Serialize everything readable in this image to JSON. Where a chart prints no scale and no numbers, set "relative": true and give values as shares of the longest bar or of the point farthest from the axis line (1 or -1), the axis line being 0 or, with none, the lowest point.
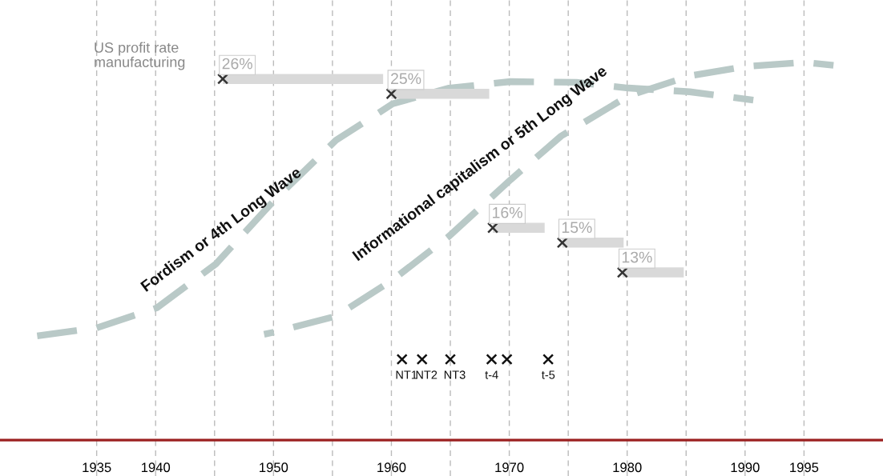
{
  "chart_data": [
    {
      "type": "line",
      "relative": true,
      "grid": "x",
      "tick_labels": "x",
      "line_style": "dashed",
      "xlim": [
        1926.8,
        2001.7
      ],
      "xticks": [
        1935,
        1940,
        {
          "value": 1945,
          "label": null
        },
        1950,
        {
          "value": 1955,
          "label": null
        },
        1960,
        {
          "value": 1965,
          "label": null
        },
        1970,
        {
          "value": 1975,
          "label": null
        },
        1980,
        {
          "value": 1985,
          "label": null
        },
        1990,
        1995
      ],
      "series": [
        {
          "color": "#b9c9c7",
          "x": [
            1929.8,
            1935,
            1940.1,
            1945.1,
            1950.1,
            1955.3,
            1960.1,
            1964.9,
            1970.1,
            1975.7,
            1980.1,
            1985.3,
            1990.7
          ],
          "values": [
            0.275,
            0.297,
            0.35,
            0.466,
            0.636,
            0.794,
            0.89,
            0.932,
            0.949,
            0.947,
            0.932,
            0.922,
            0.9
          ]
        },
        {
          "color": "#b9c9c7",
          "x": [
            1949.2,
            1950.1,
            1955.3,
            1960.1,
            1964.9,
            1970.1,
            1974.4,
            1980.1,
            1985.3,
            1990.1,
            1995.1,
            1997.5
          ],
          "values": [
            0.28,
            0.286,
            0.328,
            0.424,
            0.54,
            0.689,
            0.805,
            0.911,
            0.964,
            0.989,
            1.0,
            0.992
          ]
        },
        {
          "type": "scatter",
          "color": "#111111",
          "marker": "cross",
          "x": [
            1960.9,
            1962.6,
            1965.0,
            1968.5,
            1969.8,
            1973.3
          ],
          "values": [
            0.214,
            0.214,
            0.214,
            0.214,
            0.214,
            0.214
          ]
        }
      ],
      "annotations": [
        "Fordism or 4th Long Wave",
        "Informational capitalism or 5th Long Wave",
        {
          "text": "NT1",
          "x": 1960.9,
          "y": 0.214
        },
        {
          "text": "NT2",
          "x": 1962.6,
          "y": 0.214
        },
        {
          "text": "NT3",
          "x": 1965.0,
          "y": 0.214
        },
        {
          "text": "t-4",
          "x": 1968.5,
          "y": 0.214
        },
        {
          "text": "t-5",
          "x": 1973.3,
          "y": 0.214
        }
      ]
    },
    {
      "type": "scatter",
      "tick_labels": false,
      "marker": "cross",
      "xlim": [
        1926.8,
        2001.7
      ],
      "ylim": [
        -0.67,
        31.3
      ],
      "series": [
        {
          "name": "US profit rate manufacturing",
          "color": "#333333",
          "x": [
            1945.7,
            1960.0,
            1968.6,
            1974.5,
            1979.6
          ],
          "values": [
            26,
            25,
            16,
            15,
            13
          ],
          "xerrors": [
            [
              1945.7,
              1959.3
            ],
            [
              1960.0,
              1968.3
            ],
            [
              1968.6,
              1973.0
            ],
            [
              1974.5,
              1979.7
            ],
            [
              1979.6,
              1984.8
            ]
          ],
          "value_labels": [
            "26%",
            "25%",
            "16%",
            "15%",
            "13%"
          ]
        }
      ]
    }
  ]
}
